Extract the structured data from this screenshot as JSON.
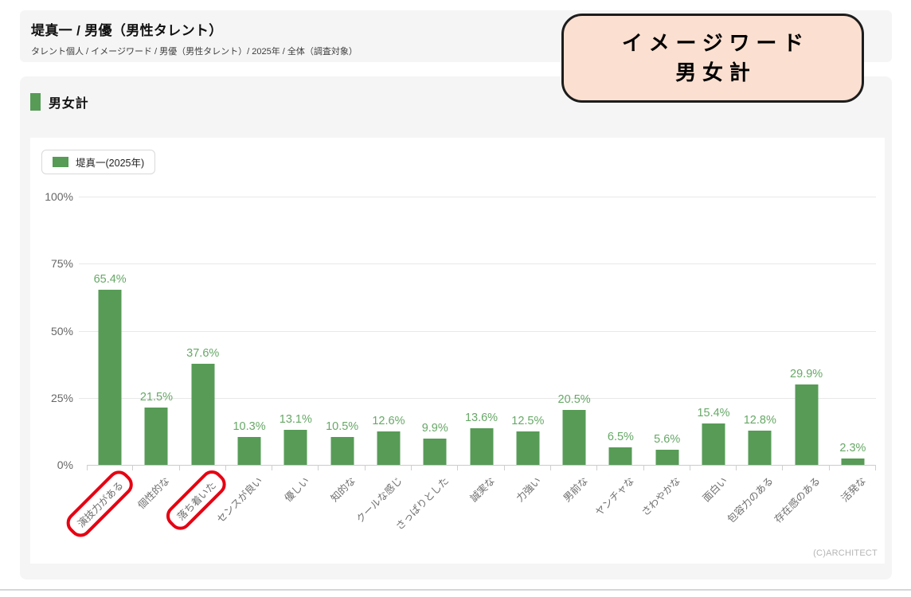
{
  "header": {
    "title": "堤真一 / 男優（男性タレント）",
    "breadcrumb": "タレント個人 / イメージワード / 男優（男性タレント）/ 2025年 / 全体（調査対象）"
  },
  "callout": {
    "line1": "イメージワード",
    "line2": "男女計"
  },
  "section": {
    "title": "男女計"
  },
  "legend": {
    "label": "堤真一(2025年)"
  },
  "chart_data": {
    "type": "bar",
    "title": "男女計",
    "categories": [
      "演技力がある",
      "個性的な",
      "落ち着いた",
      "センスが良い",
      "優しい",
      "知的な",
      "クールな感じ",
      "さっぱりとした",
      "誠実な",
      "力強い",
      "男前な",
      "ヤンチャな",
      "さわやかな",
      "面白い",
      "包容力のある",
      "存在感のある",
      "活発な"
    ],
    "series": [
      {
        "name": "堤真一(2025年)",
        "values": [
          65.4,
          21.5,
          37.6,
          10.3,
          13.1,
          10.5,
          12.6,
          9.9,
          13.6,
          12.5,
          20.5,
          6.5,
          5.6,
          15.4,
          12.8,
          29.9,
          2.3
        ]
      }
    ],
    "value_suffix": "%",
    "highlighted_categories": [
      "演技力がある",
      "落ち着いた"
    ],
    "ylim": [
      0,
      100
    ],
    "yticks": [
      0,
      25,
      50,
      75,
      100
    ],
    "ytick_suffix": "%",
    "grid": true,
    "legend_position": "top-left",
    "bar_color": "#579b57",
    "value_label_color": "#67a867",
    "highlight_color": "#e60012"
  },
  "footer": {
    "copyright": "(C)ARCHITECT"
  },
  "colors": {
    "accent_green": "#579b57",
    "callout_bg": "#fbdfd0",
    "callout_border": "#1c1c1c",
    "band_bg": "#f5f5f6",
    "highlight_red": "#e60012"
  }
}
